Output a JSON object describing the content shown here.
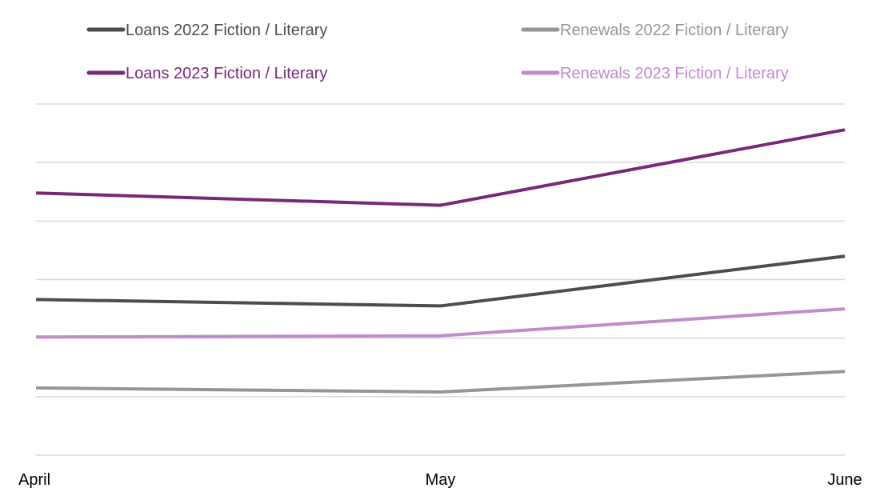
{
  "chart_data": {
    "type": "line",
    "title": "",
    "xlabel": "",
    "ylabel": "",
    "categories": [
      "April",
      "May",
      "June"
    ],
    "ylim": [
      0,
      6
    ],
    "gridlines": 6,
    "grid": true,
    "y_tick_labels_visible": false,
    "legend_position": "top",
    "series": [
      {
        "name": "Loans 2022 Fiction / Literary",
        "color": "#4d4d4d",
        "values": [
          2.66,
          2.55,
          3.4
        ]
      },
      {
        "name": "Renewals 2022 Fiction / Literary",
        "color": "#969696",
        "values": [
          1.15,
          1.08,
          1.43
        ]
      },
      {
        "name": "Loans 2023 Fiction / Literary",
        "color": "#782878",
        "values": [
          4.48,
          4.27,
          5.56
        ]
      },
      {
        "name": "Renewals 2023 Fiction / Literary",
        "color": "#bf8cc9",
        "values": [
          2.02,
          2.04,
          2.5
        ]
      }
    ]
  }
}
